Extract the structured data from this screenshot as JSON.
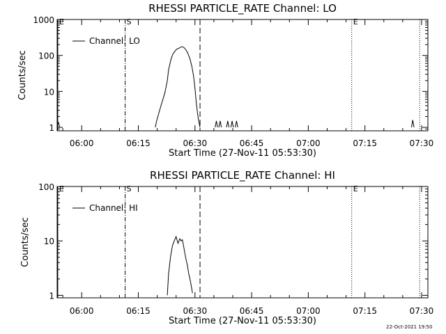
{
  "chart_data": [
    {
      "type": "line",
      "title": "RHESSI PARTICLE_RATE Channel: LO",
      "xlabel": "Start Time (27-Nov-11 05:53:30)",
      "ylabel": "Counts/sec",
      "xlim": [
        "05:53:30",
        "07:31:40"
      ],
      "ylim": [
        0.8,
        1000
      ],
      "yscale": "log",
      "grid": false,
      "legend": "top-left",
      "xticks": [
        "06:00",
        "06:15",
        "06:30",
        "06:45",
        "07:00",
        "07:15",
        "07:30"
      ],
      "yticks": [
        "1",
        "10",
        "100",
        "1000"
      ],
      "markers": [
        {
          "label": "E",
          "time": "05:53:40",
          "style": "solid"
        },
        {
          "label": "S",
          "time": "06:11:30",
          "style": "dash-dot"
        },
        {
          "label": "",
          "time": "06:31:20",
          "style": "dashed"
        },
        {
          "label": "E",
          "time": "07:11:30",
          "style": "dotted"
        },
        {
          "label": "",
          "time": "07:29:30",
          "style": "dotted"
        }
      ],
      "series": [
        {
          "name": "Channel: LO",
          "segments": [
            {
              "x": [
                "05:53:30",
                "05:53:50",
                "05:54:10"
              ],
              "y": [
                1,
                1.4,
                1
              ]
            },
            {
              "x": [
                "06:19:30",
                "06:19:50",
                "06:21:00",
                "06:22:00",
                "06:22:40",
                "06:23:00",
                "06:23:40",
                "06:24:10",
                "06:24:40",
                "06:25:10",
                "06:25:50",
                "06:26:30",
                "06:27:00",
                "06:27:40",
                "06:28:10",
                "06:28:40",
                "06:29:10",
                "06:29:40",
                "06:30:00",
                "06:30:20",
                "06:30:40",
                "06:31:00",
                "06:31:20"
              ],
              "y": [
                1,
                1.5,
                4,
                9,
                20,
                40,
                80,
                110,
                130,
                150,
                160,
                175,
                170,
                140,
                110,
                80,
                50,
                25,
                12,
                5,
                2.5,
                1.5,
                1
              ]
            },
            {
              "x": [
                "06:35:20",
                "06:35:40",
                "06:36:00"
              ],
              "y": [
                1,
                1.5,
                1
              ]
            },
            {
              "x": [
                "06:36:20",
                "06:36:40",
                "06:37:00"
              ],
              "y": [
                1,
                1.5,
                1
              ]
            },
            {
              "x": [
                "06:38:20",
                "06:38:40",
                "06:39:00"
              ],
              "y": [
                1,
                1.5,
                1
              ]
            },
            {
              "x": [
                "06:39:30",
                "06:39:50",
                "06:40:10"
              ],
              "y": [
                1,
                1.5,
                1
              ]
            },
            {
              "x": [
                "06:40:40",
                "06:41:00",
                "06:41:20"
              ],
              "y": [
                1,
                1.5,
                1
              ]
            },
            {
              "x": [
                "07:27:20",
                "07:27:40",
                "07:28:00"
              ],
              "y": [
                1,
                1.6,
                1
              ]
            }
          ]
        }
      ]
    },
    {
      "type": "line",
      "title": "RHESSI PARTICLE_RATE Channel: HI",
      "xlabel": "Start Time (27-Nov-11 05:53:30)",
      "ylabel": "Counts/sec",
      "xlim": [
        "05:53:30",
        "07:31:40"
      ],
      "ylim": [
        0.9,
        100
      ],
      "yscale": "log",
      "grid": false,
      "legend": "top-left",
      "xticks": [
        "06:00",
        "06:15",
        "06:30",
        "06:45",
        "07:00",
        "07:15",
        "07:30"
      ],
      "yticks": [
        "1",
        "10",
        "100"
      ],
      "markers": [
        {
          "label": "E",
          "time": "05:53:40",
          "style": "solid"
        },
        {
          "label": "S",
          "time": "06:11:30",
          "style": "dash-dot"
        },
        {
          "label": "",
          "time": "06:31:20",
          "style": "dashed"
        },
        {
          "label": "E",
          "time": "07:11:30",
          "style": "dotted"
        },
        {
          "label": "",
          "time": "07:29:30",
          "style": "dotted"
        }
      ],
      "series": [
        {
          "name": "Channel: HI",
          "segments": [
            {
              "x": [
                "06:22:40",
                "06:23:00",
                "06:23:30",
                "06:24:00",
                "06:24:30",
                "06:25:00",
                "06:25:30",
                "06:26:00",
                "06:26:20",
                "06:26:40",
                "06:27:00",
                "06:27:30",
                "06:28:00",
                "06:28:20",
                "06:28:40",
                "06:29:00",
                "06:29:20"
              ],
              "y": [
                1,
                2.5,
                5,
                8,
                10,
                12,
                9,
                11,
                10,
                10.5,
                8,
                5,
                3.5,
                2.5,
                2,
                1.5,
                1.1
              ]
            }
          ]
        }
      ]
    }
  ],
  "footer": {
    "timestamp": "22-Oct-2021 19:50"
  }
}
